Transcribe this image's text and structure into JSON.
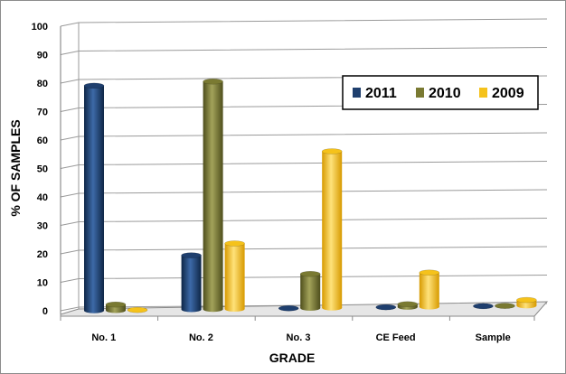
{
  "chart_data": {
    "type": "bar",
    "title": "",
    "xlabel": "GRADE",
    "ylabel": "% OF SAMPLES",
    "categories": [
      "No. 1",
      "No. 2",
      "No. 3",
      "CE Feed",
      "Sample"
    ],
    "series": [
      {
        "name": "2011",
        "values": [
          79,
          19,
          0,
          0,
          0
        ]
      },
      {
        "name": "2010",
        "values": [
          2,
          80,
          12,
          1,
          0
        ]
      },
      {
        "name": "2009",
        "values": [
          0,
          23,
          55,
          12,
          2
        ]
      }
    ],
    "ylim": [
      0,
      100
    ],
    "yticks": [
      0,
      10,
      20,
      30,
      40,
      50,
      60,
      70,
      80,
      90,
      100
    ],
    "grid": true,
    "legend_position": "top-right",
    "colors": {
      "2011": "#1f3f6e",
      "2010": "#7a7a32",
      "2009": "#f5c21b"
    }
  }
}
